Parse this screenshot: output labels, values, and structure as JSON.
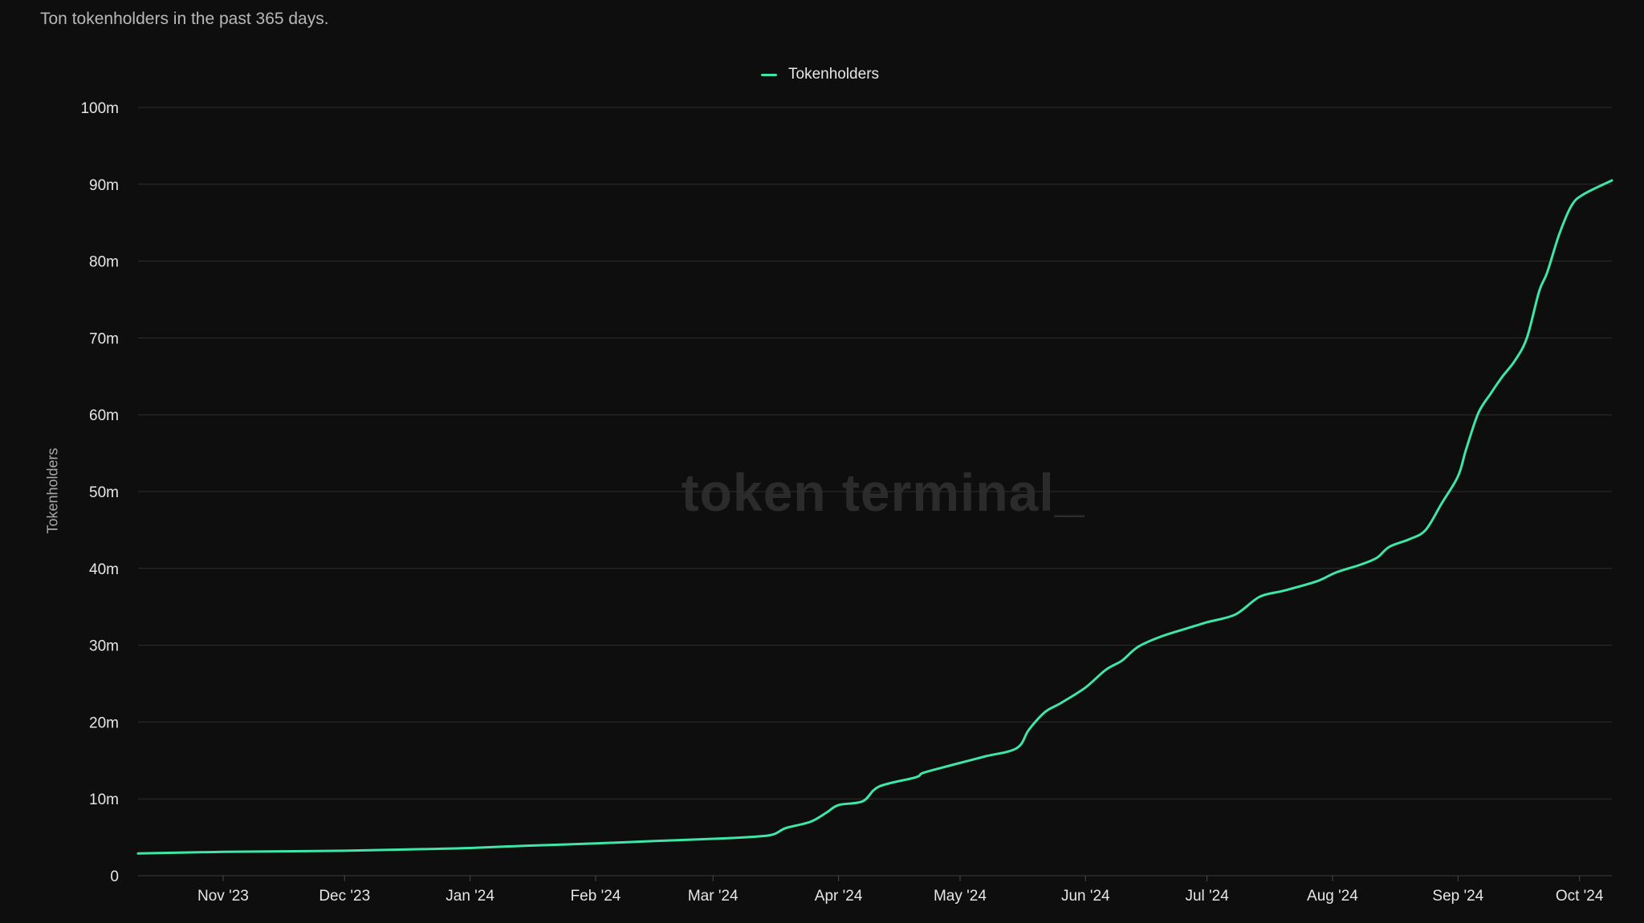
{
  "header": {
    "subtitle": "Ton tokenholders in the past 365 days."
  },
  "watermark": "token terminal_",
  "colors": {
    "background": "#0e0e0e",
    "series": "#3ee6a8",
    "grid": "#2e2e2e"
  },
  "chart_data": {
    "type": "line",
    "title": "",
    "subtitle": "Ton tokenholders in the past 365 days.",
    "xlabel": "",
    "ylabel": "Tokenholders",
    "ylim": [
      0,
      100000000
    ],
    "xlim": [
      "2023-10-11",
      "2024-10-09"
    ],
    "grid": true,
    "legend_position": "top-center",
    "y_ticks": [
      {
        "value": 0,
        "label": "0"
      },
      {
        "value": 10000000,
        "label": "10m"
      },
      {
        "value": 20000000,
        "label": "20m"
      },
      {
        "value": 30000000,
        "label": "30m"
      },
      {
        "value": 40000000,
        "label": "40m"
      },
      {
        "value": 50000000,
        "label": "50m"
      },
      {
        "value": 60000000,
        "label": "60m"
      },
      {
        "value": 70000000,
        "label": "70m"
      },
      {
        "value": 80000000,
        "label": "80m"
      },
      {
        "value": 90000000,
        "label": "90m"
      },
      {
        "value": 100000000,
        "label": "100m"
      }
    ],
    "x_ticks": [
      {
        "date": "2023-11-01",
        "label": "Nov '23"
      },
      {
        "date": "2023-12-01",
        "label": "Dec '23"
      },
      {
        "date": "2024-01-01",
        "label": "Jan '24"
      },
      {
        "date": "2024-02-01",
        "label": "Feb '24"
      },
      {
        "date": "2024-03-01",
        "label": "Mar '24"
      },
      {
        "date": "2024-04-01",
        "label": "Apr '24"
      },
      {
        "date": "2024-05-01",
        "label": "May '24"
      },
      {
        "date": "2024-06-01",
        "label": "Jun '24"
      },
      {
        "date": "2024-07-01",
        "label": "Jul '24"
      },
      {
        "date": "2024-08-01",
        "label": "Aug '24"
      },
      {
        "date": "2024-09-01",
        "label": "Sep '24"
      },
      {
        "date": "2024-10-01",
        "label": "Oct '24"
      }
    ],
    "series": [
      {
        "name": "Tokenholders",
        "color": "#3ee6a8",
        "points": [
          [
            "2023-10-11",
            2900000
          ],
          [
            "2023-11-01",
            3100000
          ],
          [
            "2023-12-01",
            3250000
          ],
          [
            "2023-12-20",
            3450000
          ],
          [
            "2024-01-01",
            3600000
          ],
          [
            "2024-01-15",
            3900000
          ],
          [
            "2024-02-01",
            4200000
          ],
          [
            "2024-02-15",
            4500000
          ],
          [
            "2024-03-01",
            4800000
          ],
          [
            "2024-03-12",
            5100000
          ],
          [
            "2024-03-16",
            5400000
          ],
          [
            "2024-03-19",
            6200000
          ],
          [
            "2024-03-25",
            7000000
          ],
          [
            "2024-03-29",
            8200000
          ],
          [
            "2024-04-01",
            9200000
          ],
          [
            "2024-04-07",
            9700000
          ],
          [
            "2024-04-11",
            11600000
          ],
          [
            "2024-04-20",
            12800000
          ],
          [
            "2024-04-22",
            13400000
          ],
          [
            "2024-04-29",
            14400000
          ],
          [
            "2024-05-07",
            15500000
          ],
          [
            "2024-05-15",
            16600000
          ],
          [
            "2024-05-18",
            19000000
          ],
          [
            "2024-05-22",
            21300000
          ],
          [
            "2024-05-26",
            22500000
          ],
          [
            "2024-06-01",
            24500000
          ],
          [
            "2024-06-06",
            26800000
          ],
          [
            "2024-06-10",
            28000000
          ],
          [
            "2024-06-14",
            29800000
          ],
          [
            "2024-06-20",
            31200000
          ],
          [
            "2024-06-28",
            32500000
          ],
          [
            "2024-07-01",
            33000000
          ],
          [
            "2024-07-08",
            34000000
          ],
          [
            "2024-07-14",
            36300000
          ],
          [
            "2024-07-20",
            37100000
          ],
          [
            "2024-07-28",
            38300000
          ],
          [
            "2024-08-02",
            39500000
          ],
          [
            "2024-08-08",
            40500000
          ],
          [
            "2024-08-12",
            41400000
          ],
          [
            "2024-08-15",
            42800000
          ],
          [
            "2024-08-20",
            43800000
          ],
          [
            "2024-08-24",
            45000000
          ],
          [
            "2024-08-28",
            48500000
          ],
          [
            "2024-09-01",
            52000000
          ],
          [
            "2024-09-03",
            55500000
          ],
          [
            "2024-09-06",
            60200000
          ],
          [
            "2024-09-09",
            62700000
          ],
          [
            "2024-09-12",
            65000000
          ],
          [
            "2024-09-15",
            67000000
          ],
          [
            "2024-09-18",
            70000000
          ],
          [
            "2024-09-21",
            76000000
          ],
          [
            "2024-09-23",
            78500000
          ],
          [
            "2024-09-26",
            83500000
          ],
          [
            "2024-09-29",
            87200000
          ],
          [
            "2024-10-02",
            88700000
          ],
          [
            "2024-10-09",
            90500000
          ]
        ]
      }
    ]
  }
}
